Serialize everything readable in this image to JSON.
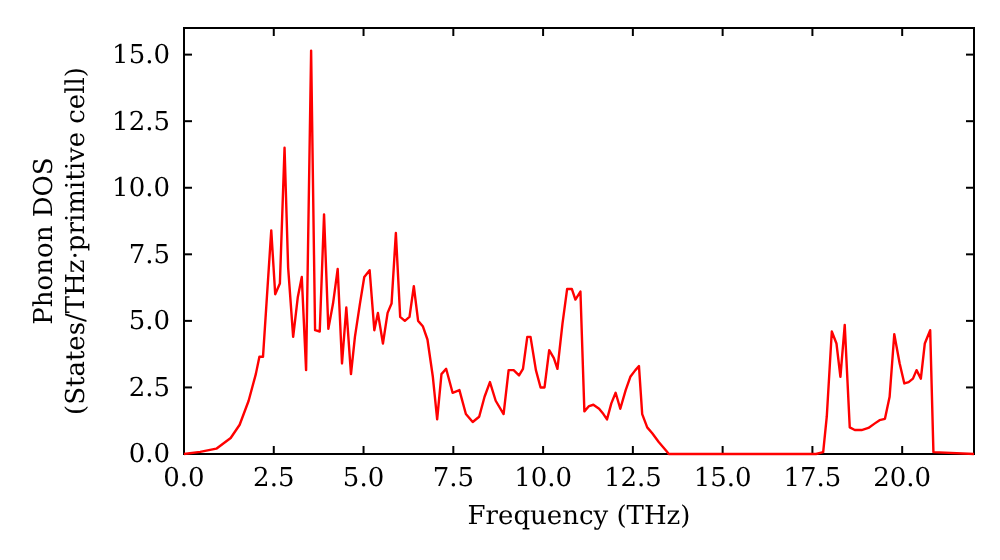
{
  "chart_data": {
    "type": "line",
    "xlabel": "Frequency (THz)",
    "ylabel": "Phonon DOS\n(States/THz·primitive cell)",
    "xlim": [
      0,
      22
    ],
    "ylim": [
      0,
      16
    ],
    "xticks": [
      {
        "value": 0,
        "label": "0.0"
      },
      {
        "value": 2.5,
        "label": "2.5"
      },
      {
        "value": 5,
        "label": "5.0"
      },
      {
        "value": 7.5,
        "label": "7.5"
      },
      {
        "value": 10,
        "label": "10.0"
      },
      {
        "value": 12.5,
        "label": "12.5"
      },
      {
        "value": 15,
        "label": "15.0"
      },
      {
        "value": 17.5,
        "label": "17.5"
      },
      {
        "value": 20,
        "label": "20.0"
      }
    ],
    "yticks": [
      {
        "value": 0,
        "label": "0.0"
      },
      {
        "value": 2.5,
        "label": "2.5"
      },
      {
        "value": 5,
        "label": "5.0"
      },
      {
        "value": 7.5,
        "label": "7.5"
      },
      {
        "value": 10,
        "label": "10.0"
      },
      {
        "value": 12.5,
        "label": "12.5"
      },
      {
        "value": 15,
        "label": "15.0"
      }
    ],
    "grid": false,
    "marker": "none",
    "line_style": "solid",
    "series": [
      {
        "color": "#ff0000",
        "x": [
          0,
          0.45,
          0.9,
          1.3,
          1.55,
          1.8,
          2.0,
          2.1,
          2.2,
          2.43,
          2.54,
          2.67,
          2.8,
          2.9,
          3.04,
          3.17,
          3.28,
          3.4,
          3.54,
          3.65,
          3.78,
          3.9,
          4.02,
          4.15,
          4.28,
          4.4,
          4.52,
          4.65,
          4.76,
          4.9,
          5.02,
          5.17,
          5.3,
          5.4,
          5.54,
          5.67,
          5.78,
          5.9,
          6.02,
          6.15,
          6.28,
          6.4,
          6.52,
          6.65,
          6.78,
          6.93,
          7.05,
          7.17,
          7.3,
          7.48,
          7.67,
          7.85,
          8.04,
          8.22,
          8.37,
          8.52,
          8.68,
          8.9,
          9.04,
          9.18,
          9.33,
          9.44,
          9.56,
          9.65,
          9.8,
          9.93,
          10.04,
          10.17,
          10.3,
          10.4,
          10.54,
          10.67,
          10.8,
          10.9,
          11.04,
          11.15,
          11.28,
          11.4,
          11.56,
          11.68,
          11.78,
          11.9,
          12.02,
          12.15,
          12.3,
          12.43,
          12.57,
          12.67,
          12.76,
          12.9,
          13.04,
          13.22,
          13.44,
          13.5,
          17.6,
          17.8,
          17.9,
          18.04,
          18.17,
          18.28,
          18.4,
          18.54,
          18.68,
          18.87,
          19.06,
          19.24,
          19.37,
          19.52,
          19.65,
          19.78,
          19.93,
          20.06,
          20.18,
          20.3,
          20.4,
          20.52,
          20.63,
          20.78,
          20.87,
          22
        ],
        "values": [
          0,
          0.08,
          0.2,
          0.6,
          1.1,
          2,
          3,
          3.65,
          3.65,
          8.4,
          6.0,
          6.4,
          11.5,
          7.0,
          4.4,
          5.9,
          6.65,
          3.15,
          15.15,
          4.65,
          4.6,
          9.0,
          4.7,
          5.65,
          6.95,
          3.4,
          5.5,
          3.0,
          4.4,
          5.65,
          6.65,
          6.9,
          4.65,
          5.3,
          4.15,
          5.3,
          5.65,
          8.3,
          5.15,
          5.0,
          5.15,
          6.3,
          5.0,
          4.8,
          4.3,
          2.9,
          1.3,
          3.0,
          3.2,
          2.3,
          2.4,
          1.5,
          1.2,
          1.4,
          2.15,
          2.7,
          2.0,
          1.5,
          3.15,
          3.15,
          2.95,
          3.2,
          4.4,
          4.4,
          3.15,
          2.5,
          2.5,
          3.9,
          3.6,
          3.2,
          4.9,
          6.2,
          6.2,
          5.8,
          6.1,
          1.6,
          1.8,
          1.85,
          1.7,
          1.5,
          1.3,
          1.9,
          2.3,
          1.7,
          2.4,
          2.9,
          3.15,
          3.3,
          1.5,
          1.0,
          0.78,
          0.45,
          0.1,
          0,
          0,
          0.07,
          1.4,
          4.6,
          4.15,
          2.9,
          4.85,
          1.0,
          0.9,
          0.9,
          0.98,
          1.15,
          1.27,
          1.32,
          2.15,
          4.5,
          3.4,
          2.65,
          2.7,
          2.83,
          3.15,
          2.83,
          4.15,
          4.65,
          0.07,
          0
        ]
      }
    ]
  }
}
